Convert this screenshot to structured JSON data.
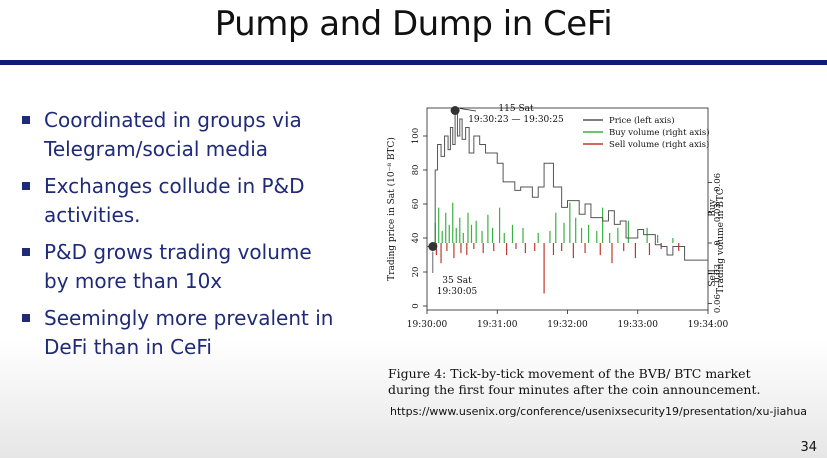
{
  "slide": {
    "title": "Pump and Dump in CeFi",
    "bullets": [
      "Coordinated in groups via Telegram/social media",
      "Exchanges collude in P&D activities.",
      "P&D grows trading volume by more than 10x",
      "Seemingly more prevalent in DeFi than in CeFi"
    ],
    "caption": "Figure 4: Tick-by-tick movement of the BVB/ BTC market during the first four minutes after the coin announcement.",
    "source_url": "https://www.usenix.org/conference/usenixsecurity19/presentation/xu-jiahua",
    "page_number": "34"
  },
  "colors": {
    "title_rule": "#0e1e78",
    "bullet_text": "#1f2a78",
    "price_line": "#555555",
    "buy_volume": "#3cb043",
    "sell_volume": "#c0392b"
  },
  "chart_data": {
    "type": "line",
    "ylabel_left": "Trading price in Sat (10⁻⁸ BTC)",
    "ylabel_right": "Trading volume in BTC",
    "right_axis_buy_label": "Buy",
    "right_axis_sell_label": "Sell",
    "x_ticks": [
      "19:30:00",
      "19:31:00",
      "19:32:00",
      "19:33:00",
      "19:34:00"
    ],
    "y_left_ticks": [
      "0",
      "20",
      "40",
      "60",
      "80",
      "100"
    ],
    "y_right_ticks": [
      "0.06",
      "0.03",
      "0",
      "0.03",
      "0.06"
    ],
    "ylim_left": [
      0,
      100
    ],
    "xlim_seconds": [
      0,
      240
    ],
    "legend": [
      {
        "name": "Price (left axis)",
        "color": "#555555"
      },
      {
        "name": "Buy volume (right axis)",
        "color": "#3cb043"
      },
      {
        "name": "Sell volume (right axis)",
        "color": "#c0392b"
      }
    ],
    "legend_position": "top-right",
    "annotations": [
      {
        "text_lines": [
          "115 Sat",
          "19:30:23 — 19:30:25"
        ]
      },
      {
        "text_lines": [
          "35 Sat",
          "19:30:05"
        ]
      }
    ],
    "marked_points": [
      {
        "t": 5,
        "price": 35
      },
      {
        "t": 24,
        "price": 115
      }
    ],
    "price_series": [
      [
        0,
        35
      ],
      [
        5,
        35
      ],
      [
        7,
        80
      ],
      [
        9,
        95
      ],
      [
        12,
        88
      ],
      [
        15,
        100
      ],
      [
        18,
        92
      ],
      [
        20,
        105
      ],
      [
        22,
        95
      ],
      [
        24,
        115
      ],
      [
        26,
        100
      ],
      [
        28,
        110
      ],
      [
        30,
        98
      ],
      [
        33,
        105
      ],
      [
        36,
        90
      ],
      [
        40,
        100
      ],
      [
        45,
        95
      ],
      [
        50,
        90
      ],
      [
        60,
        84
      ],
      [
        65,
        73
      ],
      [
        75,
        68
      ],
      [
        80,
        70
      ],
      [
        90,
        64
      ],
      [
        95,
        70
      ],
      [
        100,
        84
      ],
      [
        108,
        70
      ],
      [
        115,
        58
      ],
      [
        120,
        62
      ],
      [
        130,
        54
      ],
      [
        135,
        60
      ],
      [
        140,
        52
      ],
      [
        150,
        50
      ],
      [
        155,
        56
      ],
      [
        160,
        48
      ],
      [
        165,
        50
      ],
      [
        170,
        40
      ],
      [
        180,
        45
      ],
      [
        185,
        42
      ],
      [
        195,
        36
      ],
      [
        200,
        35
      ],
      [
        205,
        30
      ],
      [
        210,
        35
      ],
      [
        220,
        27
      ],
      [
        240,
        27
      ]
    ],
    "buy_volume_series": [
      [
        7,
        0.02
      ],
      [
        10,
        0.035
      ],
      [
        13,
        0.012
      ],
      [
        16,
        0.03
      ],
      [
        19,
        0.018
      ],
      [
        22,
        0.04
      ],
      [
        25,
        0.015
      ],
      [
        28,
        0.025
      ],
      [
        31,
        0.01
      ],
      [
        35,
        0.03
      ],
      [
        38,
        0.018
      ],
      [
        42,
        0.022
      ],
      [
        47,
        0.012
      ],
      [
        52,
        0.028
      ],
      [
        56,
        0.015
      ],
      [
        62,
        0.035
      ],
      [
        66,
        0.01
      ],
      [
        73,
        0.018
      ],
      [
        82,
        0.015
      ],
      [
        95,
        0.01
      ],
      [
        105,
        0.012
      ],
      [
        110,
        0.03
      ],
      [
        117,
        0.02
      ],
      [
        122,
        0.04
      ],
      [
        127,
        0.025
      ],
      [
        132,
        0.015
      ],
      [
        138,
        0.018
      ],
      [
        145,
        0.012
      ],
      [
        150,
        0.035
      ],
      [
        156,
        0.01
      ],
      [
        163,
        0.015
      ],
      [
        172,
        0.022
      ],
      [
        188,
        0.015
      ],
      [
        197,
        0.008
      ],
      [
        210,
        0.005
      ]
    ],
    "sell_volume_series": [
      [
        8,
        0.012
      ],
      [
        12,
        0.02
      ],
      [
        17,
        0.008
      ],
      [
        23,
        0.015
      ],
      [
        29,
        0.01
      ],
      [
        34,
        0.012
      ],
      [
        40,
        0.006
      ],
      [
        48,
        0.01
      ],
      [
        57,
        0.008
      ],
      [
        68,
        0.012
      ],
      [
        76,
        0.006
      ],
      [
        84,
        0.01
      ],
      [
        92,
        0.008
      ],
      [
        100,
        0.05
      ],
      [
        108,
        0.012
      ],
      [
        115,
        0.008
      ],
      [
        125,
        0.015
      ],
      [
        135,
        0.01
      ],
      [
        148,
        0.012
      ],
      [
        158,
        0.02
      ],
      [
        168,
        0.008
      ],
      [
        178,
        0.015
      ],
      [
        190,
        0.012
      ],
      [
        200,
        0.006
      ],
      [
        215,
        0.008
      ]
    ]
  }
}
